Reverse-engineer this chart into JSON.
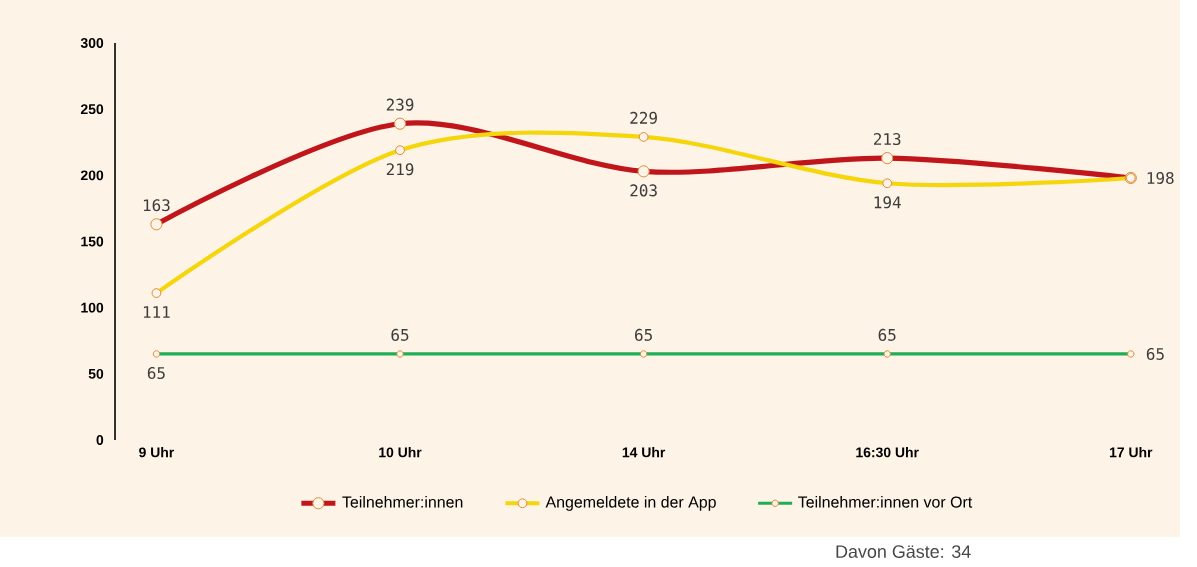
{
  "chart_data": {
    "type": "line",
    "categories": [
      "9 Uhr",
      "10 Uhr",
      "14 Uhr",
      "16:30 Uhr",
      "17 Uhr"
    ],
    "series": [
      {
        "name": "Teilnehmer:innen",
        "color": "#c0151b",
        "values": [
          163,
          239,
          203,
          213,
          198
        ],
        "value_labels": [
          "163",
          "239",
          "203",
          "213",
          null
        ]
      },
      {
        "name": "Angemeldete in der App",
        "color": "#f5d50c",
        "values": [
          111,
          219,
          229,
          194,
          198
        ],
        "value_labels": [
          "111",
          "219",
          "229",
          "194",
          "198"
        ]
      },
      {
        "name": "Teilnehmer:innen vor Ort",
        "color": "#1fae55",
        "values": [
          65,
          65,
          65,
          65,
          65
        ],
        "value_labels": [
          "65",
          "65",
          "65",
          "65",
          "65"
        ]
      }
    ],
    "ylim": [
      0,
      300
    ],
    "yticks": [
      0,
      50,
      100,
      150,
      200,
      250,
      300
    ],
    "grid": false,
    "legend": "bottom",
    "marker": "circle",
    "line_style": "solid",
    "annotations": [
      "Davon Gäste: 34"
    ]
  }
}
